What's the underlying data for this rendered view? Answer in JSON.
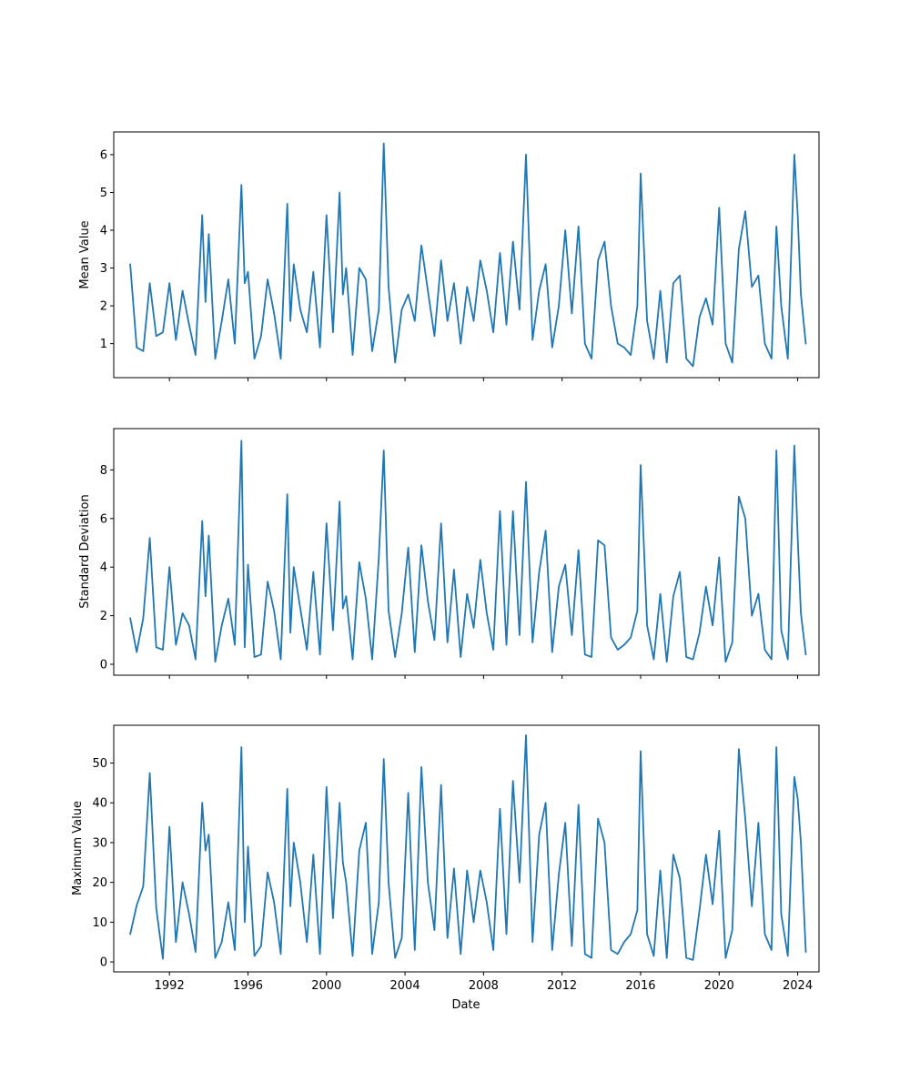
{
  "x_label": "Date",
  "colors": {
    "series": "#1f77b4",
    "axes": "#000000",
    "background": "#ffffff"
  },
  "chart_data": [
    {
      "type": "line",
      "ylabel": "Mean Value",
      "ylim": [
        0.1,
        6.6
      ],
      "yticks": [
        1,
        2,
        3,
        4,
        5,
        6
      ],
      "xlim": [
        "1989-03-01",
        "2025-02-01"
      ],
      "xticks": [
        "1992",
        "1996",
        "2000",
        "2004",
        "2008",
        "2012",
        "2016",
        "2020",
        "2024"
      ],
      "grid": false,
      "x": [
        "1990-01",
        "1990-05",
        "1990-09",
        "1991-01",
        "1991-05",
        "1991-09",
        "1992-01",
        "1992-05",
        "1992-09",
        "1993-01",
        "1993-05",
        "1993-09",
        "1993-11",
        "1994-01",
        "1994-05",
        "1994-09",
        "1995-01",
        "1995-05",
        "1995-09",
        "1995-11",
        "1996-01",
        "1996-05",
        "1996-09",
        "1997-01",
        "1997-05",
        "1997-09",
        "1998-01",
        "1998-03",
        "1998-05",
        "1998-09",
        "1999-01",
        "1999-05",
        "1999-09",
        "2000-01",
        "2000-05",
        "2000-09",
        "2000-11",
        "2001-01",
        "2001-05",
        "2001-09",
        "2002-01",
        "2002-05",
        "2002-09",
        "2002-12",
        "2003-03",
        "2003-07",
        "2003-11",
        "2004-03",
        "2004-07",
        "2004-11",
        "2005-03",
        "2005-07",
        "2005-11",
        "2006-03",
        "2006-07",
        "2006-11",
        "2007-03",
        "2007-07",
        "2007-11",
        "2008-03",
        "2008-07",
        "2008-11",
        "2009-03",
        "2009-07",
        "2009-11",
        "2010-03",
        "2010-07",
        "2010-11",
        "2011-03",
        "2011-07",
        "2011-11",
        "2012-03",
        "2012-07",
        "2012-11",
        "2013-03",
        "2013-07",
        "2013-11",
        "2014-03",
        "2014-07",
        "2014-11",
        "2015-03",
        "2015-07",
        "2015-11",
        "2016-01",
        "2016-05",
        "2016-09",
        "2017-01",
        "2017-05",
        "2017-09",
        "2018-01",
        "2018-05",
        "2018-09",
        "2019-01",
        "2019-05",
        "2019-09",
        "2020-01",
        "2020-05",
        "2020-09",
        "2021-01",
        "2021-05",
        "2021-09",
        "2022-01",
        "2022-05",
        "2022-09",
        "2022-12",
        "2023-03",
        "2023-07",
        "2023-11",
        "2024-01",
        "2024-03",
        "2024-06"
      ],
      "values": [
        3.1,
        0.9,
        0.8,
        2.6,
        1.2,
        1.3,
        2.6,
        1.1,
        2.4,
        1.5,
        0.7,
        4.4,
        2.1,
        3.9,
        0.6,
        1.6,
        2.7,
        1.0,
        5.2,
        2.6,
        2.9,
        0.6,
        1.2,
        2.7,
        1.8,
        0.6,
        4.7,
        1.6,
        3.1,
        1.9,
        1.3,
        2.9,
        0.9,
        4.4,
        1.3,
        5.0,
        2.3,
        3.0,
        0.7,
        3.0,
        2.7,
        0.8,
        1.9,
        6.3,
        2.5,
        0.5,
        1.9,
        2.3,
        1.6,
        3.6,
        2.4,
        1.2,
        3.2,
        1.6,
        2.6,
        1.0,
        2.5,
        1.6,
        3.2,
        2.4,
        1.3,
        3.4,
        1.5,
        3.7,
        1.9,
        6.0,
        1.1,
        2.4,
        3.1,
        0.9,
        2.0,
        4.0,
        1.8,
        4.1,
        1.0,
        0.6,
        3.2,
        3.7,
        2.0,
        1.0,
        0.9,
        0.7,
        2.0,
        5.5,
        1.6,
        0.6,
        2.4,
        0.5,
        2.6,
        2.8,
        0.6,
        0.4,
        1.7,
        2.2,
        1.5,
        4.6,
        1.0,
        0.5,
        3.5,
        4.5,
        2.5,
        2.8,
        1.0,
        0.6,
        4.1,
        2.0,
        0.6,
        6.0,
        4.4,
        2.3,
        1.0
      ]
    },
    {
      "type": "line",
      "ylabel": "Standard Deviation",
      "ylim": [
        -0.45,
        9.7
      ],
      "yticks": [
        0,
        2,
        4,
        6,
        8
      ],
      "xlim": [
        "1989-03-01",
        "2025-02-01"
      ],
      "xticks": [
        "1992",
        "1996",
        "2000",
        "2004",
        "2008",
        "2012",
        "2016",
        "2020",
        "2024"
      ],
      "grid": false,
      "x": [
        "1990-01",
        "1990-05",
        "1990-09",
        "1991-01",
        "1991-05",
        "1991-09",
        "1992-01",
        "1992-05",
        "1992-09",
        "1993-01",
        "1993-05",
        "1993-09",
        "1993-11",
        "1994-01",
        "1994-05",
        "1994-09",
        "1995-01",
        "1995-05",
        "1995-09",
        "1995-11",
        "1996-01",
        "1996-05",
        "1996-09",
        "1997-01",
        "1997-05",
        "1997-09",
        "1998-01",
        "1998-03",
        "1998-05",
        "1998-09",
        "1999-01",
        "1999-05",
        "1999-09",
        "2000-01",
        "2000-05",
        "2000-09",
        "2000-11",
        "2001-01",
        "2001-05",
        "2001-09",
        "2002-01",
        "2002-05",
        "2002-09",
        "2002-12",
        "2003-03",
        "2003-07",
        "2003-11",
        "2004-03",
        "2004-07",
        "2004-11",
        "2005-03",
        "2005-07",
        "2005-11",
        "2006-03",
        "2006-07",
        "2006-11",
        "2007-03",
        "2007-07",
        "2007-11",
        "2008-03",
        "2008-07",
        "2008-11",
        "2009-03",
        "2009-07",
        "2009-11",
        "2010-03",
        "2010-07",
        "2010-11",
        "2011-03",
        "2011-07",
        "2011-11",
        "2012-03",
        "2012-07",
        "2012-11",
        "2013-03",
        "2013-07",
        "2013-11",
        "2014-03",
        "2014-07",
        "2014-11",
        "2015-03",
        "2015-07",
        "2015-11",
        "2016-01",
        "2016-05",
        "2016-09",
        "2017-01",
        "2017-05",
        "2017-09",
        "2018-01",
        "2018-05",
        "2018-09",
        "2019-01",
        "2019-05",
        "2019-09",
        "2020-01",
        "2020-05",
        "2020-09",
        "2021-01",
        "2021-05",
        "2021-09",
        "2022-01",
        "2022-05",
        "2022-09",
        "2022-12",
        "2023-03",
        "2023-07",
        "2023-11",
        "2024-01",
        "2024-03",
        "2024-06"
      ],
      "values": [
        1.9,
        0.5,
        1.9,
        5.2,
        0.7,
        0.6,
        4.0,
        0.8,
        2.1,
        1.6,
        0.2,
        5.9,
        2.8,
        5.3,
        0.1,
        1.6,
        2.7,
        0.8,
        9.2,
        0.7,
        4.1,
        0.3,
        0.4,
        3.4,
        2.2,
        0.2,
        7.0,
        1.3,
        4.0,
        2.3,
        0.6,
        3.8,
        0.4,
        5.8,
        1.4,
        6.7,
        2.3,
        2.8,
        0.2,
        4.2,
        2.7,
        0.2,
        4.4,
        8.8,
        2.2,
        0.3,
        2.1,
        4.8,
        0.5,
        4.9,
        2.6,
        1.0,
        5.8,
        0.9,
        3.9,
        0.3,
        2.9,
        1.5,
        4.3,
        2.1,
        0.6,
        6.3,
        0.8,
        6.3,
        1.2,
        7.5,
        0.9,
        3.8,
        5.5,
        0.5,
        3.2,
        4.1,
        1.2,
        4.7,
        0.4,
        0.3,
        5.1,
        4.9,
        1.1,
        0.6,
        0.8,
        1.1,
        2.2,
        8.2,
        1.6,
        0.2,
        2.9,
        0.1,
        2.8,
        3.8,
        0.3,
        0.2,
        1.3,
        3.2,
        1.6,
        4.4,
        0.1,
        0.9,
        6.9,
        6.0,
        2.0,
        2.9,
        0.6,
        0.2,
        8.8,
        1.4,
        0.2,
        9.0,
        5.2,
        2.1,
        0.4
      ]
    },
    {
      "type": "line",
      "ylabel": "Maximum Value",
      "ylim": [
        -2.5,
        59.5
      ],
      "yticks": [
        0,
        10,
        20,
        30,
        40,
        50
      ],
      "xlim": [
        "1989-03-01",
        "2025-02-01"
      ],
      "xticks": [
        "1992",
        "1996",
        "2000",
        "2004",
        "2008",
        "2012",
        "2016",
        "2020",
        "2024"
      ],
      "grid": false,
      "x": [
        "1990-01",
        "1990-05",
        "1990-09",
        "1991-01",
        "1991-05",
        "1991-09",
        "1992-01",
        "1992-05",
        "1992-09",
        "1993-01",
        "1993-05",
        "1993-09",
        "1993-11",
        "1994-01",
        "1994-05",
        "1994-09",
        "1995-01",
        "1995-05",
        "1995-09",
        "1995-11",
        "1996-01",
        "1996-05",
        "1996-09",
        "1997-01",
        "1997-05",
        "1997-09",
        "1998-01",
        "1998-03",
        "1998-05",
        "1998-09",
        "1999-01",
        "1999-05",
        "1999-09",
        "2000-01",
        "2000-05",
        "2000-09",
        "2000-11",
        "2001-01",
        "2001-05",
        "2001-09",
        "2002-01",
        "2002-05",
        "2002-09",
        "2002-12",
        "2003-03",
        "2003-07",
        "2003-11",
        "2004-03",
        "2004-07",
        "2004-11",
        "2005-03",
        "2005-07",
        "2005-11",
        "2006-03",
        "2006-07",
        "2006-11",
        "2007-03",
        "2007-07",
        "2007-11",
        "2008-03",
        "2008-07",
        "2008-11",
        "2009-03",
        "2009-07",
        "2009-11",
        "2010-03",
        "2010-07",
        "2010-11",
        "2011-03",
        "2011-07",
        "2011-11",
        "2012-03",
        "2012-07",
        "2012-11",
        "2013-03",
        "2013-07",
        "2013-11",
        "2014-03",
        "2014-07",
        "2014-11",
        "2015-03",
        "2015-07",
        "2015-11",
        "2016-01",
        "2016-05",
        "2016-09",
        "2017-01",
        "2017-05",
        "2017-09",
        "2018-01",
        "2018-05",
        "2018-09",
        "2019-01",
        "2019-05",
        "2019-09",
        "2020-01",
        "2020-05",
        "2020-09",
        "2021-01",
        "2021-05",
        "2021-09",
        "2022-01",
        "2022-05",
        "2022-09",
        "2022-12",
        "2023-03",
        "2023-07",
        "2023-11",
        "2024-01",
        "2024-03",
        "2024-06"
      ],
      "values": [
        7.0,
        14.2,
        19.0,
        47.5,
        13.5,
        0.8,
        34.0,
        5.0,
        20.0,
        12.0,
        2.5,
        40.0,
        28.0,
        32.0,
        1.0,
        5.0,
        15.0,
        3.0,
        54.0,
        10.0,
        29.0,
        1.5,
        4.0,
        22.5,
        15.0,
        2.0,
        43.5,
        14.0,
        30.0,
        20.0,
        5.0,
        27.0,
        2.0,
        44.0,
        11.0,
        40.0,
        25.0,
        20.0,
        1.5,
        28.0,
        35.0,
        2.0,
        15.0,
        51.0,
        20.0,
        1.0,
        6.0,
        42.5,
        3.0,
        49.0,
        20.0,
        8.0,
        44.5,
        6.0,
        23.5,
        2.0,
        23.0,
        10.0,
        23.0,
        15.0,
        3.0,
        38.5,
        7.0,
        45.5,
        20.0,
        57.0,
        5.0,
        32.0,
        40.0,
        3.0,
        22.0,
        35.0,
        4.0,
        39.5,
        2.0,
        1.0,
        36.0,
        30.0,
        3.0,
        2.0,
        5.0,
        7.0,
        13.0,
        53.0,
        7.0,
        1.5,
        23.0,
        1.0,
        27.0,
        21.0,
        1.0,
        0.5,
        13.0,
        27.0,
        14.5,
        33.0,
        1.0,
        8.0,
        53.5,
        36.0,
        14.0,
        35.0,
        7.0,
        3.0,
        54.0,
        12.0,
        1.5,
        46.5,
        41.0,
        30.0,
        2.5
      ]
    }
  ]
}
